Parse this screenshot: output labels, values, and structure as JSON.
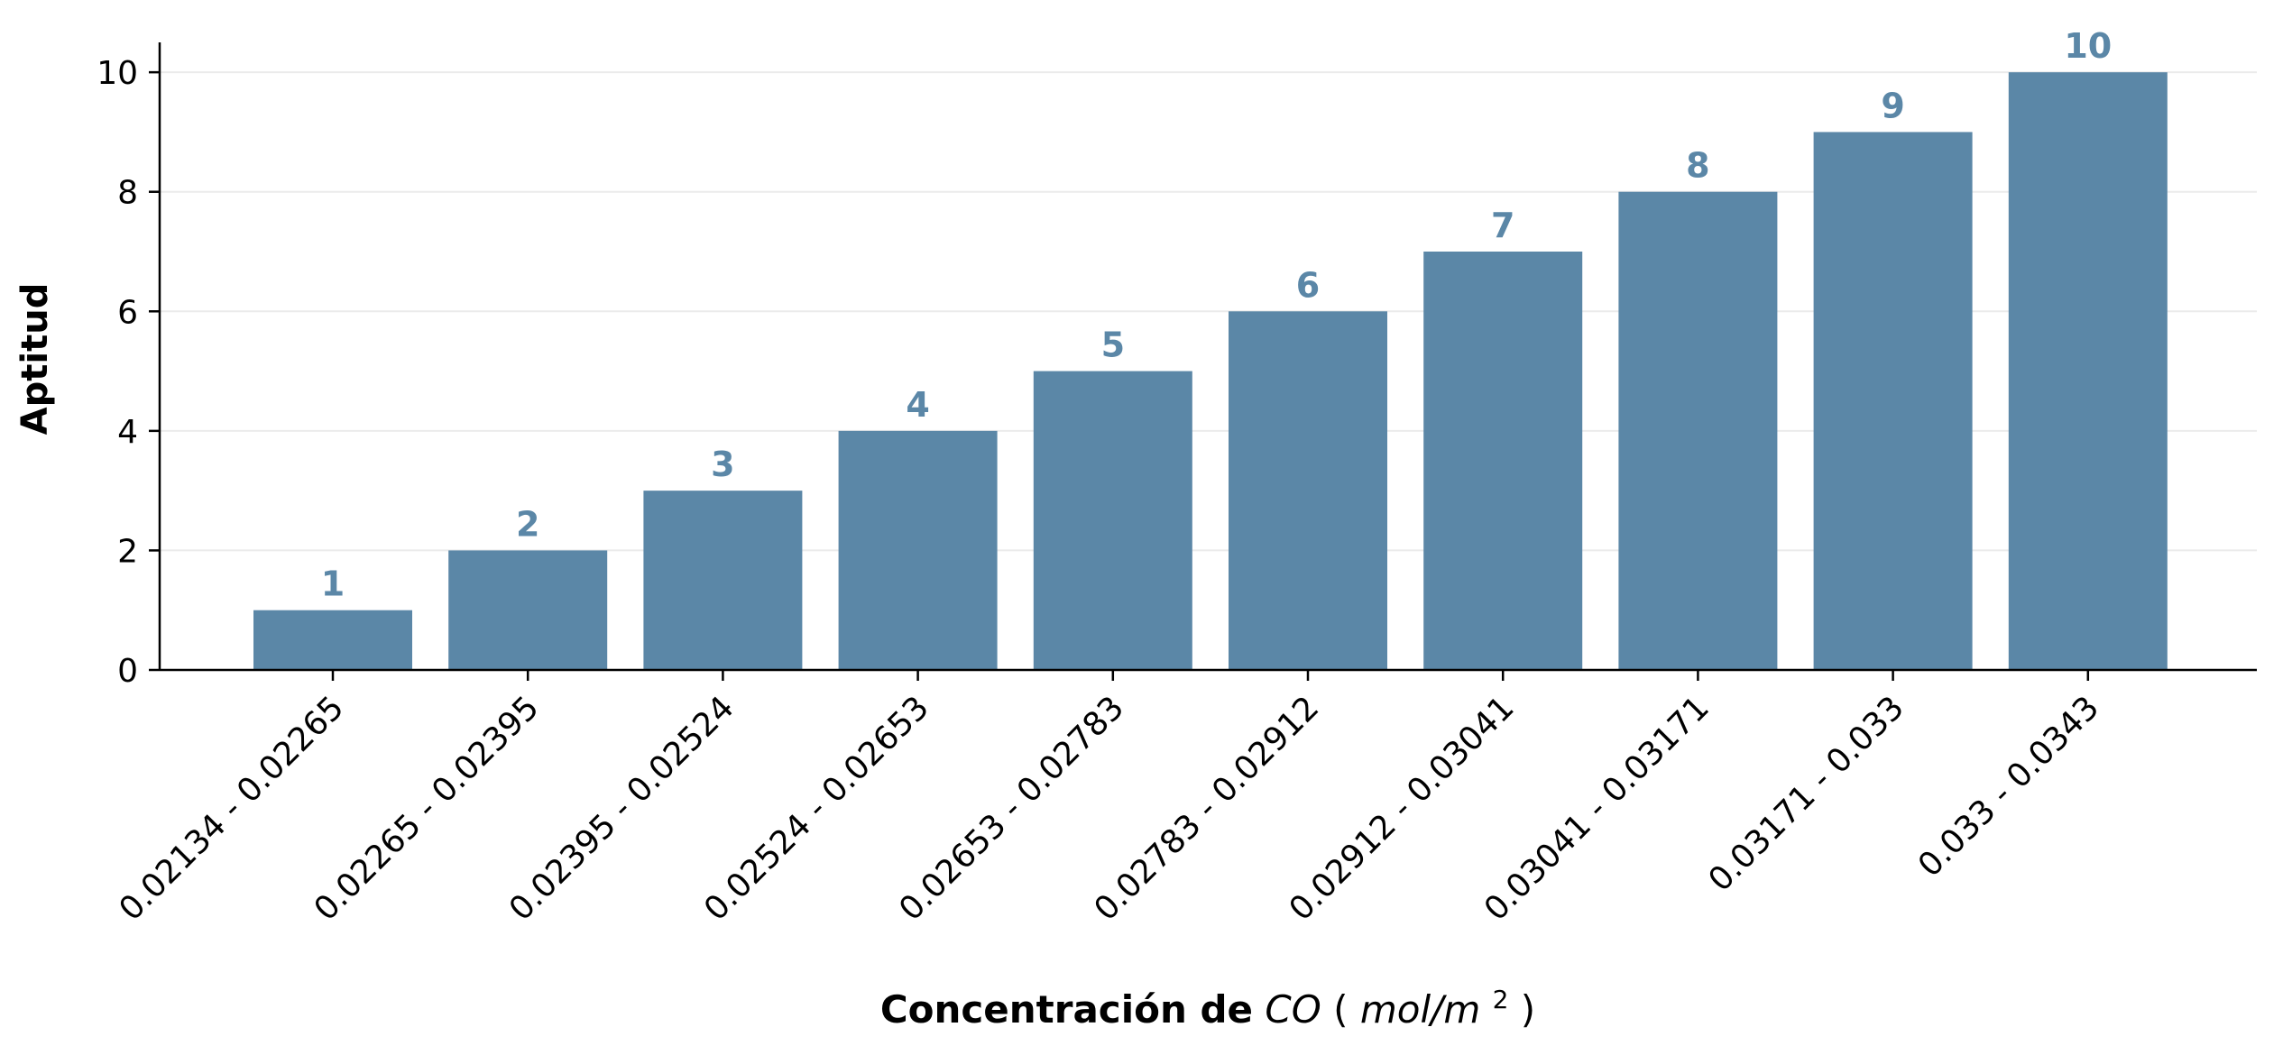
{
  "chart_data": {
    "type": "bar",
    "title": "",
    "xlabel": "Concentración de",
    "xlabel_math": "CO",
    "xlabel_unit_prefix": "(",
    "xlabel_unit_main": "mol/m",
    "xlabel_unit_exp": "2",
    "xlabel_unit_suffix": ")",
    "ylabel": "Aptitud",
    "categories": [
      "0.02134 - 0.02265",
      "0.02265 - 0.02395",
      "0.02395 - 0.02524",
      "0.02524 - 0.02653",
      "0.02653 - 0.02783",
      "0.02783 - 0.02912",
      "0.02912 - 0.03041",
      "0.03041 - 0.03171",
      "0.03171 - 0.033",
      "0.033 - 0.0343"
    ],
    "values": [
      1,
      2,
      3,
      4,
      5,
      6,
      7,
      8,
      9,
      10
    ],
    "data_labels": [
      "1",
      "2",
      "3",
      "4",
      "5",
      "6",
      "7",
      "8",
      "9",
      "10"
    ],
    "ylim": [
      0,
      10.5
    ],
    "yticks": [
      0,
      2,
      4,
      6,
      8,
      10
    ],
    "ytick_labels": [
      "0",
      "2",
      "4",
      "6",
      "8",
      "10"
    ],
    "grid": "horizontal",
    "legend": "none",
    "colors": {
      "bar": "#5b87a7",
      "label": "#5b87a7",
      "axis": "#000000",
      "grid": "#ebebeb",
      "text": "#000000"
    }
  }
}
